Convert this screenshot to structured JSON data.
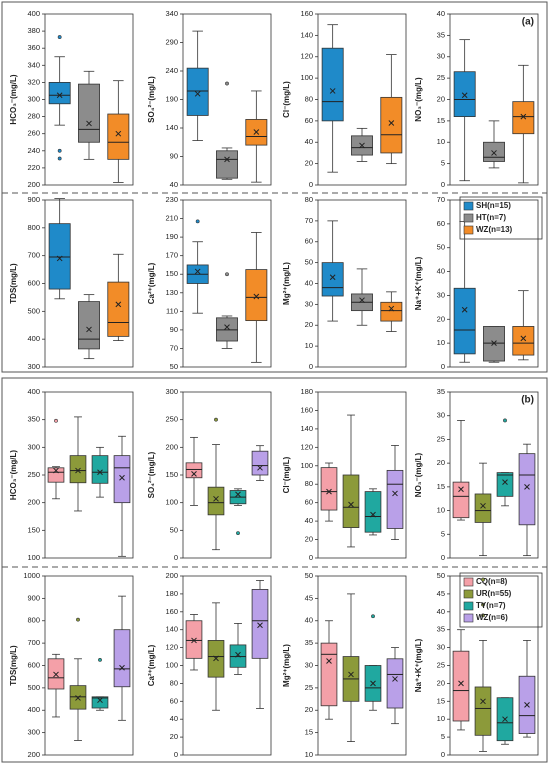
{
  "chart_data": [
    {
      "type": "box",
      "ylabel": "HCO₃⁻(mg/L)",
      "ylim": [
        200,
        400
      ],
      "yticks": [
        200,
        220,
        240,
        260,
        280,
        300,
        320,
        340,
        360,
        380,
        400
      ],
      "series": [
        {
          "color": "#1f8ac9",
          "whislo": 270,
          "q1": 295,
          "med": 305,
          "q3": 320,
          "whishi": 350,
          "mean": 305,
          "fliers": [
            373,
            240,
            231
          ]
        },
        {
          "color": "#8c8c8c",
          "whislo": 230,
          "q1": 250,
          "med": 265,
          "q3": 318,
          "whishi": 333,
          "mean": 272,
          "fliers": []
        },
        {
          "color": "#f28c28",
          "whislo": 203,
          "q1": 230,
          "med": 250,
          "q3": 283,
          "whishi": 322,
          "mean": 260,
          "fliers": []
        }
      ]
    },
    {
      "type": "box",
      "ylabel": "SO₄²⁻(mg/L)",
      "ylim": [
        40,
        340
      ],
      "yticks": [
        40,
        90,
        140,
        190,
        240,
        290,
        340
      ],
      "series": [
        {
          "color": "#1f8ac9",
          "whislo": 118,
          "q1": 162,
          "med": 205,
          "q3": 245,
          "whishi": 310,
          "mean": 200,
          "fliers": []
        },
        {
          "color": "#8c8c8c",
          "whislo": 50,
          "q1": 52,
          "med": 85,
          "q3": 100,
          "whishi": 105,
          "mean": 85,
          "fliers": [
            218
          ]
        },
        {
          "color": "#f28c28",
          "whislo": 45,
          "q1": 110,
          "med": 125,
          "q3": 155,
          "whishi": 205,
          "mean": 133,
          "fliers": []
        }
      ]
    },
    {
      "type": "box",
      "ylabel": "Cl⁻(mg/L)",
      "ylim": [
        0,
        160
      ],
      "yticks": [
        0,
        20,
        40,
        60,
        80,
        100,
        120,
        140,
        160
      ],
      "series": [
        {
          "color": "#1f8ac9",
          "whislo": 12,
          "q1": 60,
          "med": 78,
          "q3": 128,
          "whishi": 150,
          "mean": 88,
          "fliers": []
        },
        {
          "color": "#8c8c8c",
          "whislo": 22,
          "q1": 28,
          "med": 35,
          "q3": 46,
          "whishi": 53,
          "mean": 37,
          "fliers": []
        },
        {
          "color": "#f28c28",
          "whislo": 20,
          "q1": 30,
          "med": 47,
          "q3": 82,
          "whishi": 122,
          "mean": 58,
          "fliers": []
        }
      ]
    },
    {
      "type": "box",
      "ylabel": "NO₃⁻(mg/L)",
      "panel_label": "(a)",
      "ylim": [
        0,
        40
      ],
      "yticks": [
        0,
        5,
        10,
        15,
        20,
        25,
        30,
        35,
        40
      ],
      "series": [
        {
          "color": "#1f8ac9",
          "whislo": 1,
          "q1": 16,
          "med": 20,
          "q3": 26.5,
          "whishi": 34,
          "mean": 21,
          "fliers": []
        },
        {
          "color": "#8c8c8c",
          "whislo": 4,
          "q1": 5.5,
          "med": 6.5,
          "q3": 10,
          "whishi": 15,
          "mean": 7.5,
          "fliers": []
        },
        {
          "color": "#f28c28",
          "whislo": 0.5,
          "q1": 12,
          "med": 16,
          "q3": 19.5,
          "whishi": 28,
          "mean": 16,
          "fliers": []
        }
      ]
    },
    {
      "type": "box",
      "ylabel": "TDS(mg/L)",
      "ylim": [
        300,
        900
      ],
      "yticks": [
        300,
        400,
        500,
        600,
        700,
        800,
        900
      ],
      "series": [
        {
          "color": "#1f8ac9",
          "whislo": 545,
          "q1": 580,
          "med": 695,
          "q3": 815,
          "whishi": 905,
          "mean": 690,
          "fliers": []
        },
        {
          "color": "#8c8c8c",
          "whislo": 330,
          "q1": 365,
          "med": 400,
          "q3": 535,
          "whishi": 560,
          "mean": 435,
          "fliers": []
        },
        {
          "color": "#f28c28",
          "whislo": 395,
          "q1": 410,
          "med": 460,
          "q3": 605,
          "whishi": 705,
          "mean": 525,
          "fliers": []
        }
      ]
    },
    {
      "type": "box",
      "ylabel": "Ca²⁺(mg/L)",
      "ylim": [
        50,
        230
      ],
      "yticks": [
        50,
        70,
        90,
        110,
        130,
        150,
        170,
        190,
        210,
        230
      ],
      "series": [
        {
          "color": "#1f8ac9",
          "whislo": 108,
          "q1": 140,
          "med": 150,
          "q3": 160,
          "whishi": 185,
          "mean": 153,
          "fliers": [
            207
          ]
        },
        {
          "color": "#8c8c8c",
          "whislo": 70,
          "q1": 78,
          "med": 90,
          "q3": 103,
          "whishi": 105,
          "mean": 93,
          "fliers": [
            150
          ]
        },
        {
          "color": "#f28c28",
          "whislo": 55,
          "q1": 100,
          "med": 125,
          "q3": 155,
          "whishi": 195,
          "mean": 126,
          "fliers": []
        }
      ]
    },
    {
      "type": "box",
      "ylabel": "Mg²⁺(mg/L)",
      "ylim": [
        0,
        80
      ],
      "yticks": [
        0,
        10,
        20,
        30,
        40,
        50,
        60,
        70,
        80
      ],
      "series": [
        {
          "color": "#1f8ac9",
          "whislo": 22,
          "q1": 34,
          "med": 38,
          "q3": 50,
          "whishi": 70,
          "mean": 43,
          "fliers": []
        },
        {
          "color": "#8c8c8c",
          "whislo": 20,
          "q1": 27,
          "med": 31,
          "q3": 35,
          "whishi": 47,
          "mean": 32,
          "fliers": []
        },
        {
          "color": "#f28c28",
          "whislo": 17,
          "q1": 22,
          "med": 27,
          "q3": 31,
          "whishi": 36,
          "mean": 28,
          "fliers": []
        }
      ]
    },
    {
      "type": "box",
      "ylabel": "Na⁺+K⁺(mg/L)",
      "ylim": [
        0,
        70
      ],
      "yticks": [
        0,
        10,
        20,
        30,
        40,
        50,
        60,
        70
      ],
      "series": [
        {
          "name": "SH(n=15)",
          "color": "#1f8ac9",
          "whislo": 2,
          "q1": 5.5,
          "med": 15.5,
          "q3": 33,
          "whishi": 61,
          "mean": 24,
          "fliers": []
        },
        {
          "name": "HT(n=7)",
          "color": "#8c8c8c",
          "whislo": 2,
          "q1": 2.5,
          "med": 10,
          "q3": 17,
          "whishi": 17,
          "mean": 10,
          "fliers": []
        },
        {
          "name": "WZ(n=13)",
          "color": "#f28c28",
          "whislo": 3,
          "q1": 5,
          "med": 10,
          "q3": 17,
          "whishi": 32,
          "mean": 12,
          "fliers": []
        }
      ]
    },
    {
      "type": "box",
      "ylabel": "HCO₃⁻(mg/L)",
      "ylim": [
        100,
        400
      ],
      "yticks": [
        100,
        150,
        200,
        250,
        300,
        350,
        400
      ],
      "series": [
        {
          "color": "#f4a0a8",
          "whislo": 207,
          "q1": 237,
          "med": 255,
          "q3": 263,
          "whishi": 265,
          "mean": 258,
          "fliers": [
            348
          ]
        },
        {
          "color": "#8c9a3a",
          "whislo": 185,
          "q1": 236,
          "med": 258,
          "q3": 285,
          "whishi": 355,
          "mean": 258,
          "fliers": []
        },
        {
          "color": "#20a8a0",
          "whislo": 210,
          "q1": 235,
          "med": 255,
          "q3": 285,
          "whishi": 300,
          "mean": 255,
          "fliers": []
        },
        {
          "color": "#b9a0e8",
          "whislo": 103,
          "q1": 200,
          "med": 263,
          "q3": 285,
          "whishi": 320,
          "mean": 245,
          "fliers": []
        }
      ]
    },
    {
      "type": "box",
      "ylabel": "SO₄²⁻(mg/L)",
      "ylim": [
        0,
        300
      ],
      "yticks": [
        0,
        50,
        100,
        150,
        200,
        250,
        300
      ],
      "series": [
        {
          "color": "#f4a0a8",
          "whislo": 95,
          "q1": 145,
          "med": 160,
          "q3": 172,
          "whishi": 218,
          "mean": 152,
          "fliers": []
        },
        {
          "color": "#8c9a3a",
          "whislo": 15,
          "q1": 78,
          "med": 100,
          "q3": 128,
          "whishi": 205,
          "mean": 107,
          "fliers": [
            250
          ]
        },
        {
          "color": "#20a8a0",
          "whislo": 95,
          "q1": 98,
          "med": 110,
          "q3": 122,
          "whishi": 125,
          "mean": 115,
          "fliers": [
            45
          ]
        },
        {
          "color": "#b9a0e8",
          "whislo": 140,
          "q1": 150,
          "med": 167,
          "q3": 193,
          "whishi": 203,
          "mean": 163,
          "fliers": []
        }
      ]
    },
    {
      "type": "box",
      "ylabel": "Cl⁻(mg/L)",
      "ylim": [
        0,
        180
      ],
      "yticks": [
        0,
        20,
        40,
        60,
        80,
        100,
        120,
        140,
        160,
        180
      ],
      "series": [
        {
          "color": "#f4a0a8",
          "whislo": 40,
          "q1": 52,
          "med": 72,
          "q3": 98,
          "whishi": 103,
          "mean": 72,
          "fliers": []
        },
        {
          "color": "#8c9a3a",
          "whislo": 12,
          "q1": 33,
          "med": 55,
          "q3": 90,
          "whishi": 155,
          "mean": 58,
          "fliers": []
        },
        {
          "color": "#20a8a0",
          "whislo": 25,
          "q1": 28,
          "med": 45,
          "q3": 72,
          "whishi": 75,
          "mean": 47,
          "fliers": []
        },
        {
          "color": "#b9a0e8",
          "whislo": 20,
          "q1": 32,
          "med": 80,
          "q3": 95,
          "whishi": 122,
          "mean": 70,
          "fliers": []
        }
      ]
    },
    {
      "type": "box",
      "ylabel": "NO₃⁻(mg/L)",
      "panel_label": "(b)",
      "ylim": [
        0,
        35
      ],
      "yticks": [
        0,
        5,
        10,
        15,
        20,
        25,
        30,
        35
      ],
      "series": [
        {
          "color": "#f4a0a8",
          "whislo": 8,
          "q1": 8.5,
          "med": 13,
          "q3": 16,
          "whishi": 29,
          "mean": 14.5,
          "fliers": []
        },
        {
          "color": "#8c9a3a",
          "whislo": 0.5,
          "q1": 7.5,
          "med": 10,
          "q3": 13.5,
          "whishi": 20,
          "mean": 11,
          "fliers": []
        },
        {
          "color": "#20a8a0",
          "whislo": 11,
          "q1": 13,
          "med": 17.5,
          "q3": 18,
          "whishi": 18,
          "mean": 16,
          "fliers": [
            29
          ]
        },
        {
          "color": "#b9a0e8",
          "whislo": 0.5,
          "q1": 7,
          "med": 17.5,
          "q3": 22,
          "whishi": 24,
          "mean": 15,
          "fliers": []
        }
      ]
    },
    {
      "type": "box",
      "ylabel": "TDS(mg/L)",
      "ylim": [
        200,
        1000
      ],
      "yticks": [
        200,
        300,
        400,
        500,
        600,
        700,
        800,
        900,
        1000
      ],
      "series": [
        {
          "color": "#f4a0a8",
          "whislo": 370,
          "q1": 495,
          "med": 545,
          "q3": 630,
          "whishi": 650,
          "mean": 560,
          "fliers": []
        },
        {
          "color": "#8c9a3a",
          "whislo": 265,
          "q1": 405,
          "med": 460,
          "q3": 510,
          "whishi": 630,
          "mean": 455,
          "fliers": [
            805
          ]
        },
        {
          "color": "#20a8a0",
          "whislo": 400,
          "q1": 410,
          "med": 455,
          "q3": 460,
          "whishi": 460,
          "mean": 445,
          "fliers": [
            625
          ]
        },
        {
          "color": "#b9a0e8",
          "whislo": 355,
          "q1": 505,
          "med": 585,
          "q3": 760,
          "whishi": 910,
          "mean": 590,
          "fliers": []
        }
      ]
    },
    {
      "type": "box",
      "ylabel": "Ca²⁺(mg/L)",
      "ylim": [
        0,
        200
      ],
      "yticks": [
        0,
        20,
        40,
        60,
        80,
        100,
        120,
        140,
        160,
        180,
        200
      ],
      "series": [
        {
          "color": "#f4a0a8",
          "whislo": 95,
          "q1": 108,
          "med": 128,
          "q3": 150,
          "whishi": 157,
          "mean": 128,
          "fliers": []
        },
        {
          "color": "#8c9a3a",
          "whislo": 50,
          "q1": 87,
          "med": 110,
          "q3": 128,
          "whishi": 170,
          "mean": 108,
          "fliers": []
        },
        {
          "color": "#20a8a0",
          "whislo": 90,
          "q1": 98,
          "med": 110,
          "q3": 123,
          "whishi": 147,
          "mean": 112,
          "fliers": []
        },
        {
          "color": "#b9a0e8",
          "whislo": 52,
          "q1": 108,
          "med": 150,
          "q3": 185,
          "whishi": 195,
          "mean": 145,
          "fliers": []
        }
      ]
    },
    {
      "type": "box",
      "ylabel": "Mg²⁺(mg/L)",
      "ylim": [
        10,
        50
      ],
      "yticks": [
        10,
        15,
        20,
        25,
        30,
        35,
        40,
        45,
        50
      ],
      "series": [
        {
          "color": "#f4a0a8",
          "whislo": 18,
          "q1": 21,
          "med": 32.5,
          "q3": 35,
          "whishi": 40,
          "mean": 31,
          "fliers": []
        },
        {
          "color": "#8c9a3a",
          "whislo": 13,
          "q1": 22,
          "med": 27,
          "q3": 32,
          "whishi": 46,
          "mean": 28,
          "fliers": []
        },
        {
          "color": "#20a8a0",
          "whislo": 20,
          "q1": 22,
          "med": 25,
          "q3": 30,
          "whishi": 30,
          "mean": 26,
          "fliers": [
            41
          ]
        },
        {
          "color": "#b9a0e8",
          "whislo": 17,
          "q1": 20.5,
          "med": 28,
          "q3": 31.5,
          "whishi": 34,
          "mean": 27,
          "fliers": []
        }
      ]
    },
    {
      "type": "box",
      "ylabel": "Na⁺+K⁺(mg/L)",
      "ylim": [
        0,
        50
      ],
      "yticks": [
        0,
        5,
        10,
        15,
        20,
        25,
        30,
        35,
        40,
        45,
        50
      ],
      "series": [
        {
          "name": "CQ(n=8)",
          "color": "#f4a0a8",
          "whislo": 7,
          "q1": 9.5,
          "med": 18,
          "q3": 29,
          "whishi": 35,
          "mean": 20,
          "fliers": []
        },
        {
          "name": "UR(n=55)",
          "color": "#8c9a3a",
          "whislo": 1,
          "q1": 5.5,
          "med": 13,
          "q3": 19,
          "whishi": 32,
          "mean": 15,
          "fliers": [
            49,
            42,
            39
          ]
        },
        {
          "name": "TY(n=7)",
          "color": "#20a8a0",
          "whislo": 3,
          "q1": 4,
          "med": 9,
          "q3": 16,
          "whishi": 16,
          "mean": 10,
          "fliers": []
        },
        {
          "name": "WZ(n=6)",
          "color": "#b9a0e8",
          "whislo": 5,
          "q1": 6,
          "med": 11,
          "q3": 22,
          "whishi": 32,
          "mean": 14,
          "fliers": []
        }
      ]
    }
  ]
}
